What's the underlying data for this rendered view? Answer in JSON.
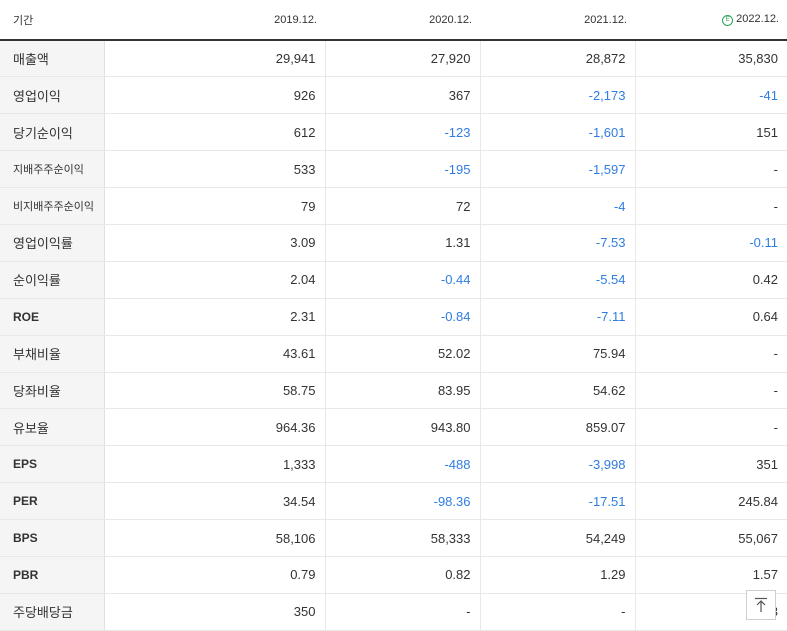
{
  "header": {
    "period_label": "기간",
    "periods": [
      "2019.12.",
      "2020.12.",
      "2021.12.",
      "2022.12."
    ],
    "estimate_icon": "estimate-circle-icon",
    "estimate_mark": "E"
  },
  "colors": {
    "negative": "#2f7de1",
    "estimate_icon": "#2ba45a",
    "header_rule": "#333333"
  },
  "rows": [
    {
      "label": "매출액",
      "values": [
        "29,941",
        "27,920",
        "28,872",
        "35,830"
      ]
    },
    {
      "label": "영업이익",
      "values": [
        "926",
        "367",
        "-2,173",
        "-41"
      ]
    },
    {
      "label": "당기순이익",
      "values": [
        "612",
        "-123",
        "-1,601",
        "151"
      ]
    },
    {
      "label": "지배주주순이익",
      "values": [
        "533",
        "-195",
        "-1,597",
        "-"
      ]
    },
    {
      "label": "비지배주주순이익",
      "values": [
        "79",
        "72",
        "-4",
        "-"
      ]
    },
    {
      "label": "영업이익률",
      "values": [
        "3.09",
        "1.31",
        "-7.53",
        "-0.11"
      ]
    },
    {
      "label": "순이익률",
      "values": [
        "2.04",
        "-0.44",
        "-5.54",
        "0.42"
      ]
    },
    {
      "label": "ROE",
      "values": [
        "2.31",
        "-0.84",
        "-7.11",
        "0.64"
      ]
    },
    {
      "label": "부채비율",
      "values": [
        "43.61",
        "52.02",
        "75.94",
        "-"
      ]
    },
    {
      "label": "당좌비율",
      "values": [
        "58.75",
        "83.95",
        "54.62",
        "-"
      ]
    },
    {
      "label": "유보율",
      "values": [
        "964.36",
        "943.80",
        "859.07",
        "-"
      ]
    },
    {
      "label": "EPS",
      "values": [
        "1,333",
        "-488",
        "-3,998",
        "351"
      ]
    },
    {
      "label": "PER",
      "values": [
        "34.54",
        "-98.36",
        "-17.51",
        "245.84"
      ]
    },
    {
      "label": "BPS",
      "values": [
        "58,106",
        "58,333",
        "54,249",
        "55,067"
      ]
    },
    {
      "label": "PBR",
      "values": [
        "0.79",
        "0.82",
        "1.29",
        "1.57"
      ]
    },
    {
      "label": "주당배당금",
      "values": [
        "350",
        "-",
        "-",
        "3"
      ]
    }
  ],
  "scroll_top_icon": "arrow-up-to-top-icon"
}
